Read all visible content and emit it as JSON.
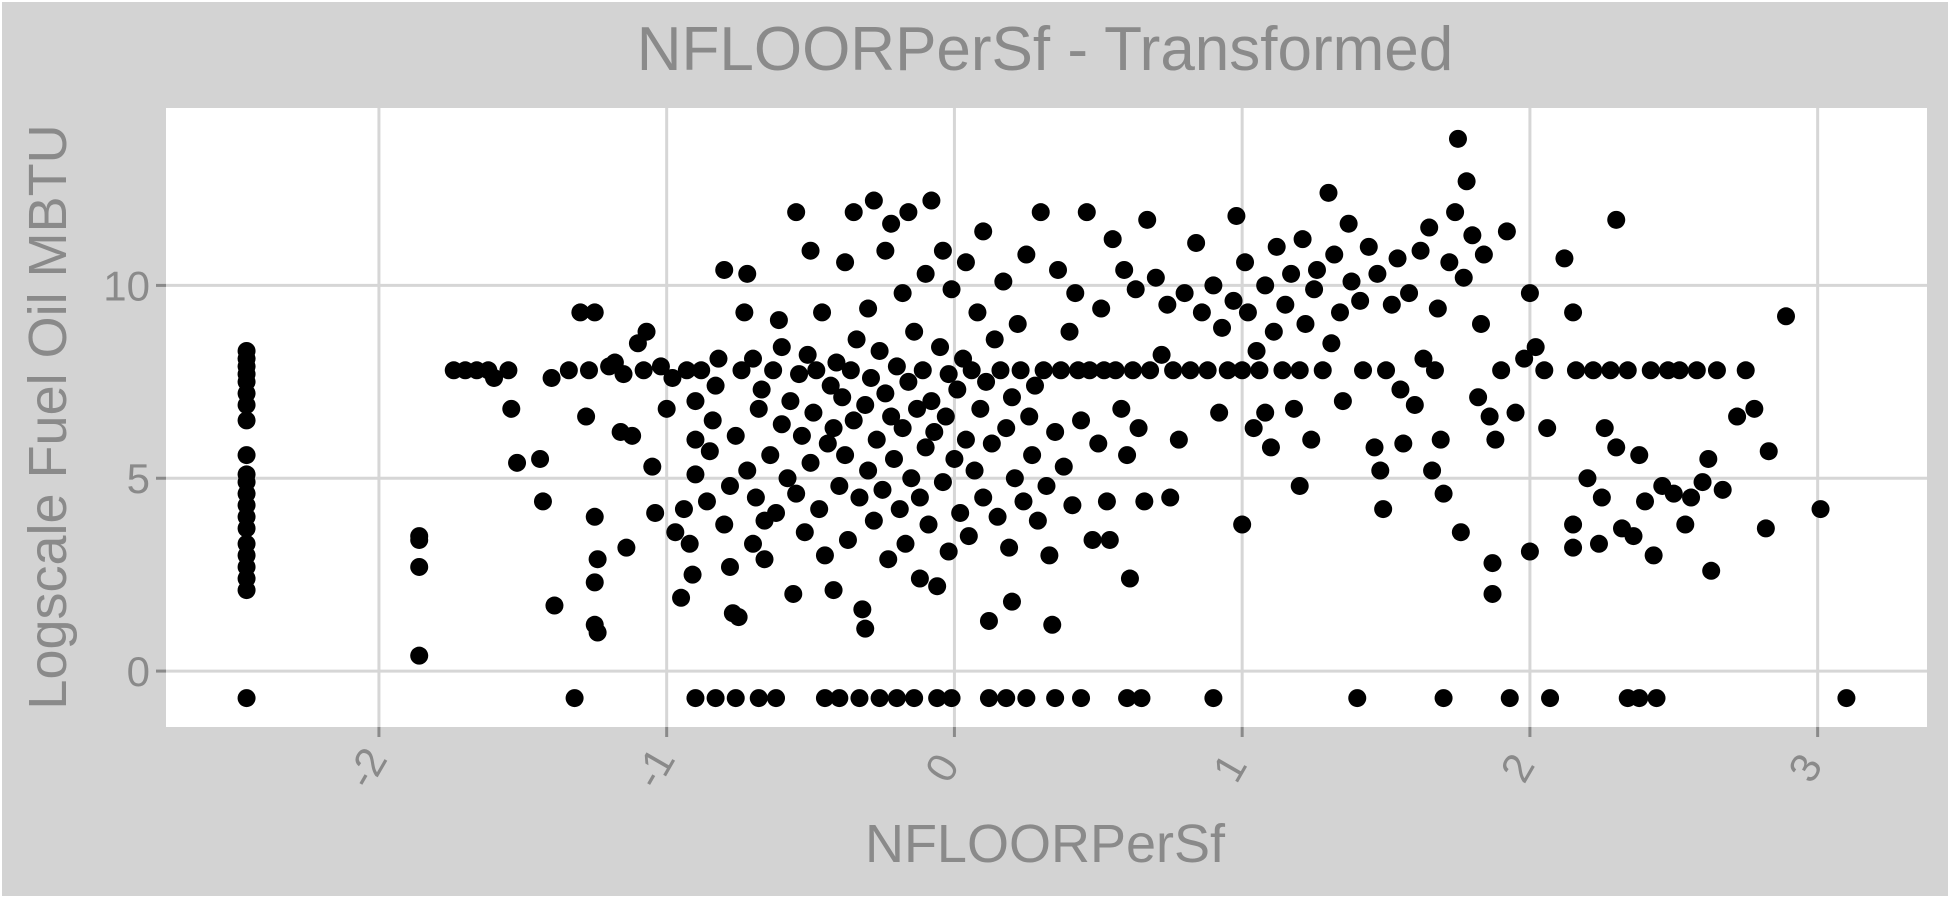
{
  "chart_data": {
    "type": "scatter",
    "title": "NFLOORPerSf - Transformed",
    "xlabel": "NFLOORPerSf",
    "ylabel": "Logscale Fuel Oil MBTU",
    "xlim": [
      -2.74,
      3.38
    ],
    "ylim": [
      -1.45,
      14.6
    ],
    "xticks": [
      -2,
      -1,
      0,
      1,
      2,
      3
    ],
    "xtick_labels": [
      "-2",
      "-1",
      "0",
      "1",
      "2",
      "3"
    ],
    "yticks": [
      0,
      5,
      10
    ],
    "ytick_labels": [
      "0",
      "5",
      "10"
    ],
    "grid": true,
    "legend": "none",
    "colors": {
      "background": "#d3d3d3",
      "panel": "#ffffff",
      "grid": "#d6d6d6",
      "point": "#000000",
      "text": "#8a8a8a"
    },
    "points": [
      [
        -2.46,
        -0.7
      ],
      [
        -2.46,
        2.1
      ],
      [
        -2.46,
        2.4
      ],
      [
        -2.46,
        2.7
      ],
      [
        -2.46,
        3.0
      ],
      [
        -2.46,
        3.3
      ],
      [
        -2.46,
        3.7
      ],
      [
        -2.46,
        4.0
      ],
      [
        -2.46,
        4.3
      ],
      [
        -2.46,
        4.6
      ],
      [
        -2.46,
        4.9
      ],
      [
        -2.46,
        5.1
      ],
      [
        -2.46,
        5.6
      ],
      [
        -2.46,
        6.5
      ],
      [
        -2.46,
        6.9
      ],
      [
        -2.46,
        7.2
      ],
      [
        -2.46,
        7.5
      ],
      [
        -2.46,
        7.7
      ],
      [
        -2.46,
        7.9
      ],
      [
        -2.46,
        8.1
      ],
      [
        -2.46,
        8.3
      ],
      [
        -1.86,
        0.4
      ],
      [
        -1.86,
        2.7
      ],
      [
        -1.86,
        3.4
      ],
      [
        -1.86,
        3.5
      ],
      [
        -1.74,
        7.8
      ],
      [
        -1.7,
        7.8
      ],
      [
        -1.66,
        7.8
      ],
      [
        -1.62,
        7.8
      ],
      [
        -1.6,
        7.6
      ],
      [
        -1.55,
        7.8
      ],
      [
        -1.54,
        6.8
      ],
      [
        -1.52,
        5.4
      ],
      [
        -1.44,
        5.5
      ],
      [
        -1.43,
        4.4
      ],
      [
        -1.4,
        7.6
      ],
      [
        -1.39,
        1.7
      ],
      [
        -1.34,
        7.8
      ],
      [
        -1.32,
        -0.7
      ],
      [
        -1.3,
        9.3
      ],
      [
        -1.28,
        6.6
      ],
      [
        -1.27,
        7.8
      ],
      [
        -1.25,
        9.3
      ],
      [
        -1.25,
        4.0
      ],
      [
        -1.25,
        2.3
      ],
      [
        -1.25,
        1.2
      ],
      [
        -1.24,
        1.0
      ],
      [
        -1.24,
        2.9
      ],
      [
        -1.2,
        7.9
      ],
      [
        -1.18,
        8.0
      ],
      [
        -1.16,
        6.2
      ],
      [
        -1.15,
        7.7
      ],
      [
        -1.14,
        3.2
      ],
      [
        -1.12,
        6.1
      ],
      [
        -1.1,
        8.5
      ],
      [
        -1.08,
        7.8
      ],
      [
        -1.07,
        8.8
      ],
      [
        -1.05,
        5.3
      ],
      [
        -1.04,
        4.1
      ],
      [
        -1.02,
        7.9
      ],
      [
        -1.0,
        6.8
      ],
      [
        -0.98,
        7.6
      ],
      [
        -0.97,
        3.6
      ],
      [
        -0.95,
        1.9
      ],
      [
        -0.94,
        4.2
      ],
      [
        -0.93,
        7.8
      ],
      [
        -0.92,
        3.3
      ],
      [
        -0.91,
        2.5
      ],
      [
        -0.9,
        5.1
      ],
      [
        -0.9,
        6.0
      ],
      [
        -0.9,
        7.0
      ],
      [
        -0.9,
        -0.7
      ],
      [
        -0.88,
        7.8
      ],
      [
        -0.86,
        4.4
      ],
      [
        -0.85,
        5.7
      ],
      [
        -0.84,
        6.5
      ],
      [
        -0.83,
        7.4
      ],
      [
        -0.83,
        -0.7
      ],
      [
        -0.82,
        8.1
      ],
      [
        -0.8,
        3.8
      ],
      [
        -0.8,
        10.4
      ],
      [
        -0.78,
        4.8
      ],
      [
        -0.78,
        2.7
      ],
      [
        -0.77,
        1.5
      ],
      [
        -0.76,
        6.1
      ],
      [
        -0.76,
        -0.7
      ],
      [
        -0.75,
        1.4
      ],
      [
        -0.74,
        7.8
      ],
      [
        -0.73,
        9.3
      ],
      [
        -0.72,
        10.3
      ],
      [
        -0.72,
        5.2
      ],
      [
        -0.7,
        3.3
      ],
      [
        -0.7,
        8.1
      ],
      [
        -0.69,
        4.5
      ],
      [
        -0.68,
        6.8
      ],
      [
        -0.68,
        -0.7
      ],
      [
        -0.67,
        7.3
      ],
      [
        -0.66,
        3.9
      ],
      [
        -0.66,
        2.9
      ],
      [
        -0.64,
        5.6
      ],
      [
        -0.63,
        7.8
      ],
      [
        -0.62,
        4.1
      ],
      [
        -0.62,
        -0.7
      ],
      [
        -0.61,
        9.1
      ],
      [
        -0.6,
        6.4
      ],
      [
        -0.6,
        8.4
      ],
      [
        -0.58,
        5.0
      ],
      [
        -0.57,
        7.0
      ],
      [
        -0.56,
        2.0
      ],
      [
        -0.55,
        4.6
      ],
      [
        -0.55,
        11.9
      ],
      [
        -0.54,
        7.7
      ],
      [
        -0.53,
        6.1
      ],
      [
        -0.52,
        3.6
      ],
      [
        -0.51,
        8.2
      ],
      [
        -0.5,
        5.4
      ],
      [
        -0.5,
        10.9
      ],
      [
        -0.49,
        6.7
      ],
      [
        -0.48,
        7.8
      ],
      [
        -0.47,
        4.2
      ],
      [
        -0.46,
        9.3
      ],
      [
        -0.45,
        3.0
      ],
      [
        -0.45,
        -0.7
      ],
      [
        -0.44,
        5.9
      ],
      [
        -0.43,
        7.4
      ],
      [
        -0.42,
        6.3
      ],
      [
        -0.42,
        2.1
      ],
      [
        -0.41,
        8.0
      ],
      [
        -0.4,
        4.8
      ],
      [
        -0.4,
        -0.7
      ],
      [
        -0.39,
        7.1
      ],
      [
        -0.38,
        5.6
      ],
      [
        -0.38,
        10.6
      ],
      [
        -0.37,
        3.4
      ],
      [
        -0.36,
        7.8
      ],
      [
        -0.35,
        6.5
      ],
      [
        -0.35,
        11.9
      ],
      [
        -0.34,
        8.6
      ],
      [
        -0.33,
        4.5
      ],
      [
        -0.33,
        -0.7
      ],
      [
        -0.32,
        1.6
      ],
      [
        -0.31,
        1.1
      ],
      [
        -0.31,
        6.9
      ],
      [
        -0.3,
        5.2
      ],
      [
        -0.3,
        9.4
      ],
      [
        -0.29,
        7.6
      ],
      [
        -0.28,
        3.9
      ],
      [
        -0.28,
        12.2
      ],
      [
        -0.27,
        6.0
      ],
      [
        -0.26,
        8.3
      ],
      [
        -0.26,
        -0.7
      ],
      [
        -0.25,
        4.7
      ],
      [
        -0.24,
        7.2
      ],
      [
        -0.24,
        10.9
      ],
      [
        -0.23,
        2.9
      ],
      [
        -0.22,
        6.6
      ],
      [
        -0.22,
        11.6
      ],
      [
        -0.21,
        5.5
      ],
      [
        -0.2,
        7.9
      ],
      [
        -0.2,
        -0.7
      ],
      [
        -0.19,
        4.2
      ],
      [
        -0.18,
        9.8
      ],
      [
        -0.18,
        6.3
      ],
      [
        -0.17,
        3.3
      ],
      [
        -0.16,
        7.5
      ],
      [
        -0.16,
        11.9
      ],
      [
        -0.15,
        5.0
      ],
      [
        -0.14,
        8.8
      ],
      [
        -0.14,
        -0.7
      ],
      [
        -0.13,
        6.8
      ],
      [
        -0.12,
        2.4
      ],
      [
        -0.12,
        4.5
      ],
      [
        -0.11,
        7.8
      ],
      [
        -0.1,
        10.3
      ],
      [
        -0.1,
        5.8
      ],
      [
        -0.09,
        3.8
      ],
      [
        -0.08,
        7.0
      ],
      [
        -0.08,
        12.2
      ],
      [
        -0.07,
        6.2
      ],
      [
        -0.06,
        2.2
      ],
      [
        -0.06,
        -0.7
      ],
      [
        -0.05,
        8.4
      ],
      [
        -0.04,
        4.9
      ],
      [
        -0.04,
        10.9
      ],
      [
        -0.03,
        6.6
      ],
      [
        -0.02,
        3.1
      ],
      [
        -0.02,
        7.7
      ],
      [
        -0.01,
        9.9
      ],
      [
        -0.01,
        -0.7
      ],
      [
        0.0,
        5.5
      ],
      [
        0.01,
        7.3
      ],
      [
        0.02,
        4.1
      ],
      [
        0.03,
        8.1
      ],
      [
        0.04,
        6.0
      ],
      [
        0.04,
        10.6
      ],
      [
        0.05,
        3.5
      ],
      [
        0.06,
        7.8
      ],
      [
        0.07,
        5.2
      ],
      [
        0.08,
        9.3
      ],
      [
        0.09,
        6.8
      ],
      [
        0.1,
        4.5
      ],
      [
        0.1,
        11.4
      ],
      [
        0.11,
        7.5
      ],
      [
        0.12,
        1.3
      ],
      [
        0.12,
        -0.7
      ],
      [
        0.13,
        5.9
      ],
      [
        0.14,
        8.6
      ],
      [
        0.15,
        4.0
      ],
      [
        0.16,
        7.8
      ],
      [
        0.17,
        10.1
      ],
      [
        0.18,
        6.3
      ],
      [
        0.18,
        -0.7
      ],
      [
        0.19,
        3.2
      ],
      [
        0.2,
        7.1
      ],
      [
        0.2,
        1.8
      ],
      [
        0.21,
        5.0
      ],
      [
        0.22,
        9.0
      ],
      [
        0.23,
        7.8
      ],
      [
        0.24,
        4.4
      ],
      [
        0.25,
        10.8
      ],
      [
        0.25,
        -0.7
      ],
      [
        0.26,
        6.6
      ],
      [
        0.27,
        5.6
      ],
      [
        0.28,
        7.4
      ],
      [
        0.29,
        3.9
      ],
      [
        0.3,
        11.9
      ],
      [
        0.31,
        7.8
      ],
      [
        0.32,
        4.8
      ],
      [
        0.33,
        3.0
      ],
      [
        0.34,
        1.2
      ],
      [
        0.35,
        6.2
      ],
      [
        0.35,
        -0.7
      ],
      [
        0.36,
        10.4
      ],
      [
        0.37,
        7.8
      ],
      [
        0.38,
        5.3
      ],
      [
        0.4,
        8.8
      ],
      [
        0.41,
        4.3
      ],
      [
        0.42,
        9.8
      ],
      [
        0.43,
        7.8
      ],
      [
        0.44,
        6.5
      ],
      [
        0.44,
        -0.7
      ],
      [
        0.46,
        11.9
      ],
      [
        0.47,
        7.8
      ],
      [
        0.48,
        3.4
      ],
      [
        0.5,
        5.9
      ],
      [
        0.51,
        9.4
      ],
      [
        0.52,
        7.8
      ],
      [
        0.53,
        4.4
      ],
      [
        0.54,
        3.4
      ],
      [
        0.55,
        11.2
      ],
      [
        0.56,
        7.8
      ],
      [
        0.58,
        6.8
      ],
      [
        0.59,
        10.4
      ],
      [
        0.6,
        5.6
      ],
      [
        0.6,
        -0.7
      ],
      [
        0.61,
        2.4
      ],
      [
        0.62,
        7.8
      ],
      [
        0.63,
        9.9
      ],
      [
        0.64,
        6.3
      ],
      [
        0.65,
        -0.7
      ],
      [
        0.66,
        4.4
      ],
      [
        0.67,
        11.7
      ],
      [
        0.68,
        7.8
      ],
      [
        0.7,
        10.2
      ],
      [
        0.72,
        8.2
      ],
      [
        0.74,
        9.5
      ],
      [
        0.75,
        4.5
      ],
      [
        0.76,
        7.8
      ],
      [
        0.78,
        6.0
      ],
      [
        0.8,
        9.8
      ],
      [
        0.82,
        7.8
      ],
      [
        0.84,
        11.1
      ],
      [
        0.86,
        9.3
      ],
      [
        0.88,
        7.8
      ],
      [
        0.9,
        10.0
      ],
      [
        0.9,
        -0.7
      ],
      [
        0.92,
        6.7
      ],
      [
        0.93,
        8.9
      ],
      [
        0.95,
        7.8
      ],
      [
        0.97,
        9.6
      ],
      [
        0.98,
        11.8
      ],
      [
        1.0,
        3.8
      ],
      [
        1.0,
        7.8
      ],
      [
        1.01,
        10.6
      ],
      [
        1.02,
        9.3
      ],
      [
        1.04,
        6.3
      ],
      [
        1.05,
        8.3
      ],
      [
        1.06,
        7.8
      ],
      [
        1.08,
        10.0
      ],
      [
        1.08,
        6.7
      ],
      [
        1.1,
        5.8
      ],
      [
        1.11,
        8.8
      ],
      [
        1.12,
        11.0
      ],
      [
        1.14,
        7.8
      ],
      [
        1.15,
        9.5
      ],
      [
        1.17,
        10.3
      ],
      [
        1.18,
        6.8
      ],
      [
        1.2,
        4.8
      ],
      [
        1.2,
        7.8
      ],
      [
        1.21,
        11.2
      ],
      [
        1.22,
        9.0
      ],
      [
        1.24,
        6.0
      ],
      [
        1.25,
        9.9
      ],
      [
        1.26,
        10.4
      ],
      [
        1.28,
        7.8
      ],
      [
        1.3,
        12.4
      ],
      [
        1.31,
        8.5
      ],
      [
        1.32,
        10.8
      ],
      [
        1.34,
        9.3
      ],
      [
        1.35,
        7.0
      ],
      [
        1.37,
        11.6
      ],
      [
        1.38,
        10.1
      ],
      [
        1.4,
        -0.7
      ],
      [
        1.41,
        9.6
      ],
      [
        1.42,
        7.8
      ],
      [
        1.44,
        11.0
      ],
      [
        1.46,
        5.8
      ],
      [
        1.47,
        10.3
      ],
      [
        1.48,
        5.2
      ],
      [
        1.49,
        4.2
      ],
      [
        1.5,
        7.8
      ],
      [
        1.52,
        9.5
      ],
      [
        1.54,
        10.7
      ],
      [
        1.55,
        7.3
      ],
      [
        1.56,
        5.9
      ],
      [
        1.58,
        9.8
      ],
      [
        1.6,
        6.9
      ],
      [
        1.62,
        10.9
      ],
      [
        1.63,
        8.1
      ],
      [
        1.65,
        11.5
      ],
      [
        1.66,
        5.2
      ],
      [
        1.67,
        7.8
      ],
      [
        1.68,
        9.4
      ],
      [
        1.69,
        6.0
      ],
      [
        1.7,
        4.6
      ],
      [
        1.7,
        -0.7
      ],
      [
        1.72,
        10.6
      ],
      [
        1.74,
        11.9
      ],
      [
        1.75,
        13.8
      ],
      [
        1.76,
        3.6
      ],
      [
        1.77,
        10.2
      ],
      [
        1.78,
        12.7
      ],
      [
        1.8,
        11.3
      ],
      [
        1.82,
        7.1
      ],
      [
        1.83,
        9.0
      ],
      [
        1.84,
        10.8
      ],
      [
        1.86,
        6.6
      ],
      [
        1.87,
        2.0
      ],
      [
        1.87,
        2.8
      ],
      [
        1.88,
        6.0
      ],
      [
        1.9,
        7.8
      ],
      [
        1.92,
        11.4
      ],
      [
        1.93,
        -0.7
      ],
      [
        1.95,
        6.7
      ],
      [
        1.98,
        8.1
      ],
      [
        2.0,
        9.8
      ],
      [
        2.0,
        3.1
      ],
      [
        2.02,
        8.4
      ],
      [
        2.05,
        7.8
      ],
      [
        2.06,
        6.3
      ],
      [
        2.07,
        -0.7
      ],
      [
        2.12,
        10.7
      ],
      [
        2.15,
        9.3
      ],
      [
        2.15,
        3.8
      ],
      [
        2.15,
        3.2
      ],
      [
        2.16,
        7.8
      ],
      [
        2.2,
        5.0
      ],
      [
        2.22,
        7.8
      ],
      [
        2.24,
        3.3
      ],
      [
        2.25,
        4.5
      ],
      [
        2.26,
        6.3
      ],
      [
        2.28,
        7.8
      ],
      [
        2.3,
        11.7
      ],
      [
        2.3,
        5.8
      ],
      [
        2.32,
        3.7
      ],
      [
        2.34,
        7.8
      ],
      [
        2.34,
        -0.7
      ],
      [
        2.36,
        3.5
      ],
      [
        2.38,
        5.6
      ],
      [
        2.38,
        -0.7
      ],
      [
        2.4,
        4.4
      ],
      [
        2.42,
        7.8
      ],
      [
        2.43,
        3.0
      ],
      [
        2.44,
        -0.7
      ],
      [
        2.46,
        4.8
      ],
      [
        2.48,
        7.8
      ],
      [
        2.5,
        4.6
      ],
      [
        2.52,
        7.8
      ],
      [
        2.54,
        3.8
      ],
      [
        2.56,
        4.5
      ],
      [
        2.58,
        7.8
      ],
      [
        2.6,
        4.9
      ],
      [
        2.62,
        5.5
      ],
      [
        2.63,
        2.6
      ],
      [
        2.65,
        7.8
      ],
      [
        2.67,
        4.7
      ],
      [
        2.72,
        6.6
      ],
      [
        2.75,
        7.8
      ],
      [
        2.78,
        6.8
      ],
      [
        2.82,
        3.7
      ],
      [
        2.83,
        5.7
      ],
      [
        2.89,
        9.2
      ],
      [
        3.01,
        4.2
      ],
      [
        3.1,
        -0.7
      ]
    ]
  }
}
